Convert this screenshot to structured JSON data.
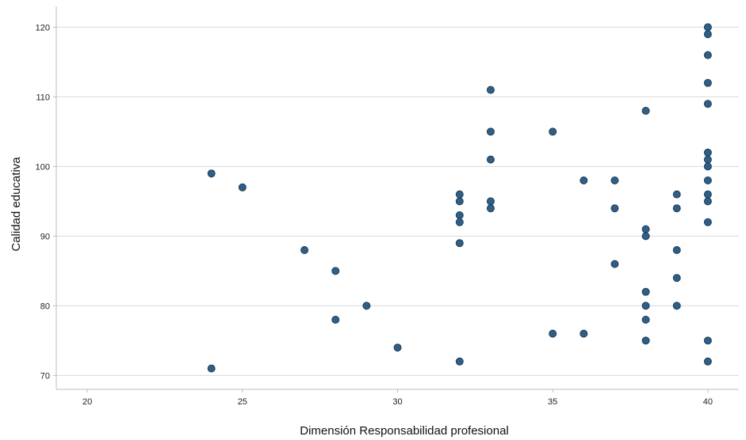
{
  "chart_data": {
    "type": "scatter",
    "title": "",
    "xlabel": "Dimensión Responsabilidad profesional",
    "ylabel": "Calidad educativa",
    "xlim": [
      19,
      41
    ],
    "ylim": [
      68,
      123
    ],
    "xticks": [
      20,
      25,
      30,
      35,
      40
    ],
    "yticks": [
      70,
      80,
      90,
      100,
      110,
      120
    ],
    "x_tick_labels": [
      "20",
      "25",
      "30",
      "35",
      "40"
    ],
    "y_tick_labels": [
      "70",
      "80",
      "90",
      "100",
      "110",
      "120"
    ],
    "grid": "horizontal",
    "marker_color": "#2f5f87",
    "marker_edge_color": "#1d3d5a",
    "grid_color": "#d9d9d9",
    "points": [
      {
        "x": 24,
        "y": 99
      },
      {
        "x": 24,
        "y": 71
      },
      {
        "x": 25,
        "y": 97
      },
      {
        "x": 27,
        "y": 88
      },
      {
        "x": 28,
        "y": 85
      },
      {
        "x": 28,
        "y": 78
      },
      {
        "x": 29,
        "y": 80
      },
      {
        "x": 30,
        "y": 74
      },
      {
        "x": 32,
        "y": 96
      },
      {
        "x": 32,
        "y": 95
      },
      {
        "x": 32,
        "y": 93
      },
      {
        "x": 32,
        "y": 92
      },
      {
        "x": 32,
        "y": 89
      },
      {
        "x": 32,
        "y": 72
      },
      {
        "x": 33,
        "y": 111
      },
      {
        "x": 33,
        "y": 105
      },
      {
        "x": 33,
        "y": 101
      },
      {
        "x": 33,
        "y": 95
      },
      {
        "x": 33,
        "y": 94
      },
      {
        "x": 35,
        "y": 105
      },
      {
        "x": 35,
        "y": 76
      },
      {
        "x": 36,
        "y": 98
      },
      {
        "x": 36,
        "y": 76
      },
      {
        "x": 37,
        "y": 98
      },
      {
        "x": 37,
        "y": 94
      },
      {
        "x": 37,
        "y": 86
      },
      {
        "x": 38,
        "y": 108
      },
      {
        "x": 38,
        "y": 91
      },
      {
        "x": 38,
        "y": 90
      },
      {
        "x": 38,
        "y": 82
      },
      {
        "x": 38,
        "y": 80
      },
      {
        "x": 38,
        "y": 78
      },
      {
        "x": 38,
        "y": 75
      },
      {
        "x": 39,
        "y": 96
      },
      {
        "x": 39,
        "y": 94
      },
      {
        "x": 39,
        "y": 88
      },
      {
        "x": 39,
        "y": 84
      },
      {
        "x": 39,
        "y": 80
      },
      {
        "x": 40,
        "y": 120
      },
      {
        "x": 40,
        "y": 119
      },
      {
        "x": 40,
        "y": 116
      },
      {
        "x": 40,
        "y": 112
      },
      {
        "x": 40,
        "y": 109
      },
      {
        "x": 40,
        "y": 102
      },
      {
        "x": 40,
        "y": 101
      },
      {
        "x": 40,
        "y": 100
      },
      {
        "x": 40,
        "y": 98
      },
      {
        "x": 40,
        "y": 96
      },
      {
        "x": 40,
        "y": 95
      },
      {
        "x": 40,
        "y": 92
      },
      {
        "x": 40,
        "y": 75
      },
      {
        "x": 40,
        "y": 72
      }
    ]
  }
}
